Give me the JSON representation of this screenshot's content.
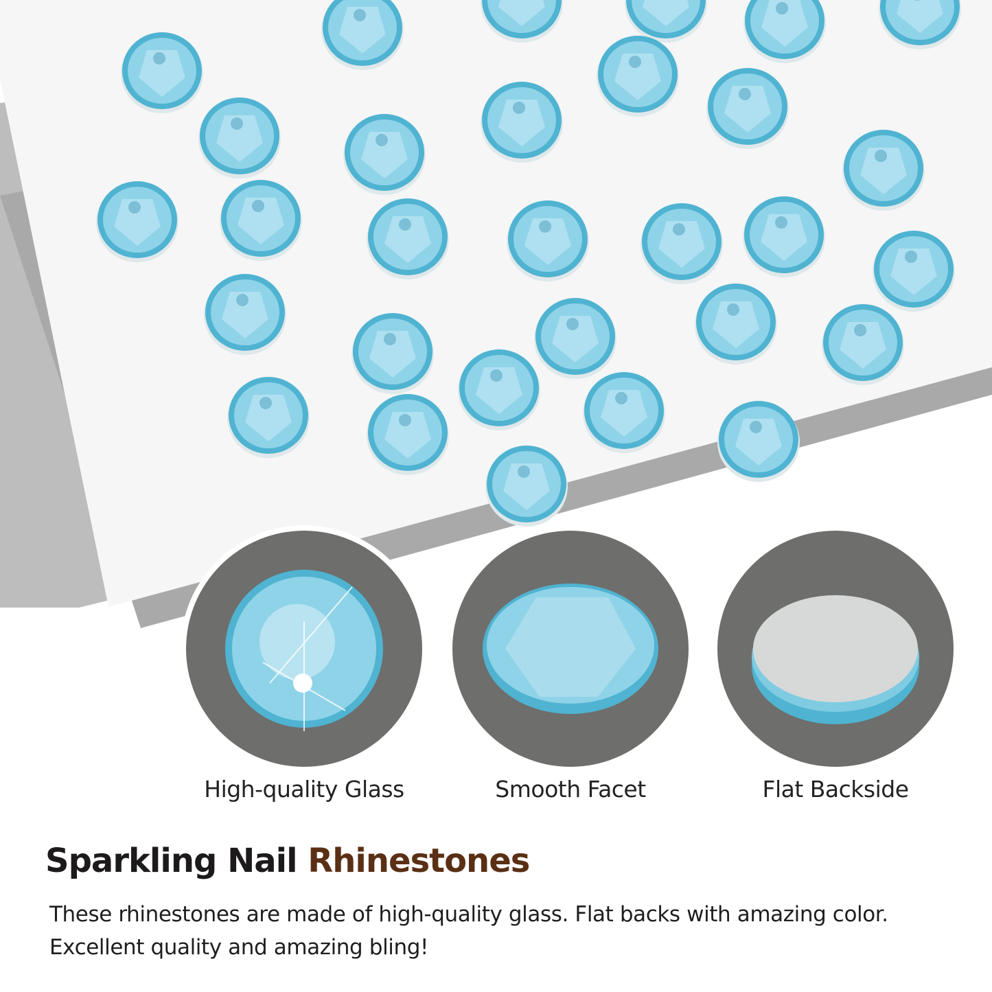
{
  "colors": {
    "stone": "#8fd3e8",
    "stone_dark": "#4fb3d1",
    "paper": "#f7f7f7",
    "sheet_gray": "#b3b3b3",
    "ring_gray": "#6e6e6c",
    "headline_dark": "#1c1a1a",
    "headline_brown": "#5a2f14"
  },
  "features": [
    {
      "label": "High-quality Glass",
      "icon": "sparkle-stone-icon"
    },
    {
      "label": "Smooth Facet",
      "icon": "faceted-stone-icon"
    },
    {
      "label": "Flat Backside",
      "icon": "flat-back-stone-icon"
    }
  ],
  "headline": {
    "part1": "Sparkling Nail ",
    "part2": "Rhinestones"
  },
  "description": {
    "line1": "These rhinestones are made of high-quality glass. Flat backs with amazing color.",
    "line2": "Excellent quality and amazing bling!"
  }
}
